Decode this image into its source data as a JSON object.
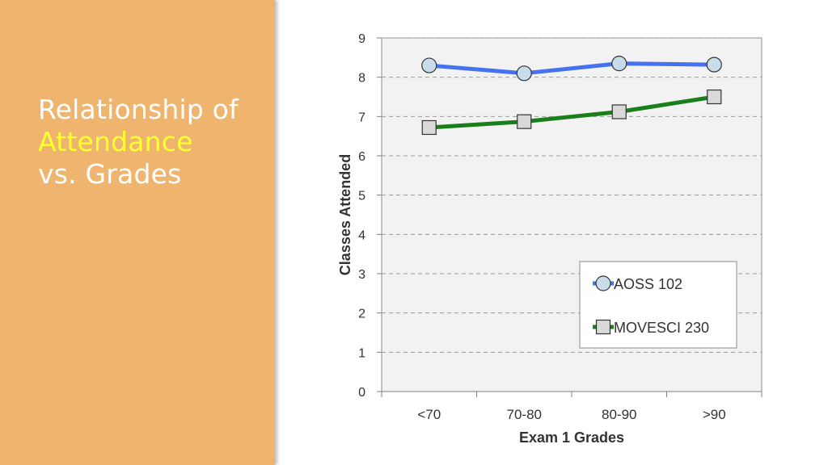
{
  "slide": {
    "title_line1": "Relationship of",
    "title_line2": "Attendance",
    "title_line3": "vs. Grades"
  },
  "colors": {
    "sidebar_bg": "#efb56e",
    "title_text": "#ffffff",
    "title_accent": "#ffff33",
    "plot_bg": "#f2f2f2",
    "aoss": "#4472f0",
    "movesci": "#1a7f1a"
  },
  "chart_data": {
    "type": "line",
    "categories": [
      "<70",
      "70-80",
      "80-90",
      ">90"
    ],
    "series": [
      {
        "name": "AOSS 102",
        "values": [
          8.3,
          8.1,
          8.35,
          8.32
        ],
        "marker": "circle",
        "color": "#4472f0"
      },
      {
        "name": "MOVESCI 230",
        "values": [
          6.72,
          6.87,
          7.12,
          7.5
        ],
        "marker": "square",
        "color": "#1a7f1a"
      }
    ],
    "xlabel": "Exam 1 Grades",
    "ylabel": "Classes Attended",
    "ylim": [
      0,
      9
    ],
    "yticks": [
      0,
      1,
      2,
      3,
      4,
      5,
      6,
      7,
      8,
      9
    ],
    "grid": "horizontal-dashed",
    "legend_position": "lower-right"
  }
}
